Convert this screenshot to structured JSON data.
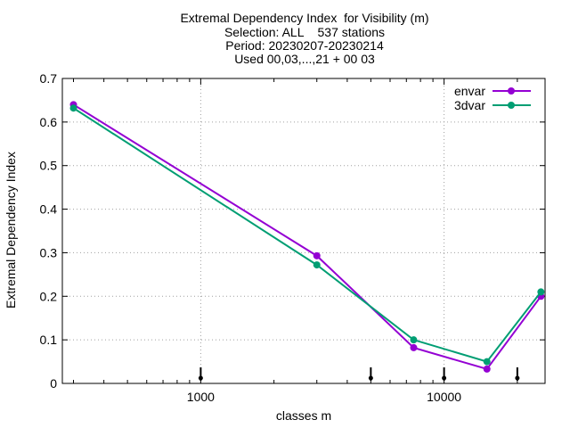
{
  "chart_data": {
    "type": "line",
    "title_lines": [
      "Extremal Dependency Index  for Visibility (m)",
      "Selection: ALL    537 stations",
      "Period: 20230207-20230214",
      "Used 00,03,...,21 + 00 03"
    ],
    "xlabel": "classes m",
    "ylabel": "Extremal Dependency Index",
    "x_scale": "log",
    "xlim": [
      270,
      26000
    ],
    "ylim": [
      0,
      0.7
    ],
    "x_ticks": [
      1000,
      10000
    ],
    "x_tick_labels": [
      "1000",
      "10000"
    ],
    "y_ticks": [
      0,
      0.1,
      0.2,
      0.3,
      0.4,
      0.5,
      0.6,
      0.7
    ],
    "y_tick_labels": [
      "0",
      "0.1",
      "0.2",
      "0.3",
      "0.4",
      "0.5",
      "0.6",
      "0.7"
    ],
    "grid": true,
    "legend_position": "top-right",
    "series": [
      {
        "name": "envar",
        "color": "#9400d3",
        "x": [
          300,
          3000,
          7500,
          15000,
          25000
        ],
        "values": [
          0.64,
          0.293,
          0.082,
          0.033,
          0.2
        ]
      },
      {
        "name": "3dvar",
        "color": "#009e73",
        "x": [
          300,
          3000,
          7500,
          15000,
          25000
        ],
        "values": [
          0.632,
          0.272,
          0.1,
          0.05,
          0.21
        ]
      }
    ],
    "markers_x": [
      1000,
      5000,
      10000,
      20000
    ]
  }
}
